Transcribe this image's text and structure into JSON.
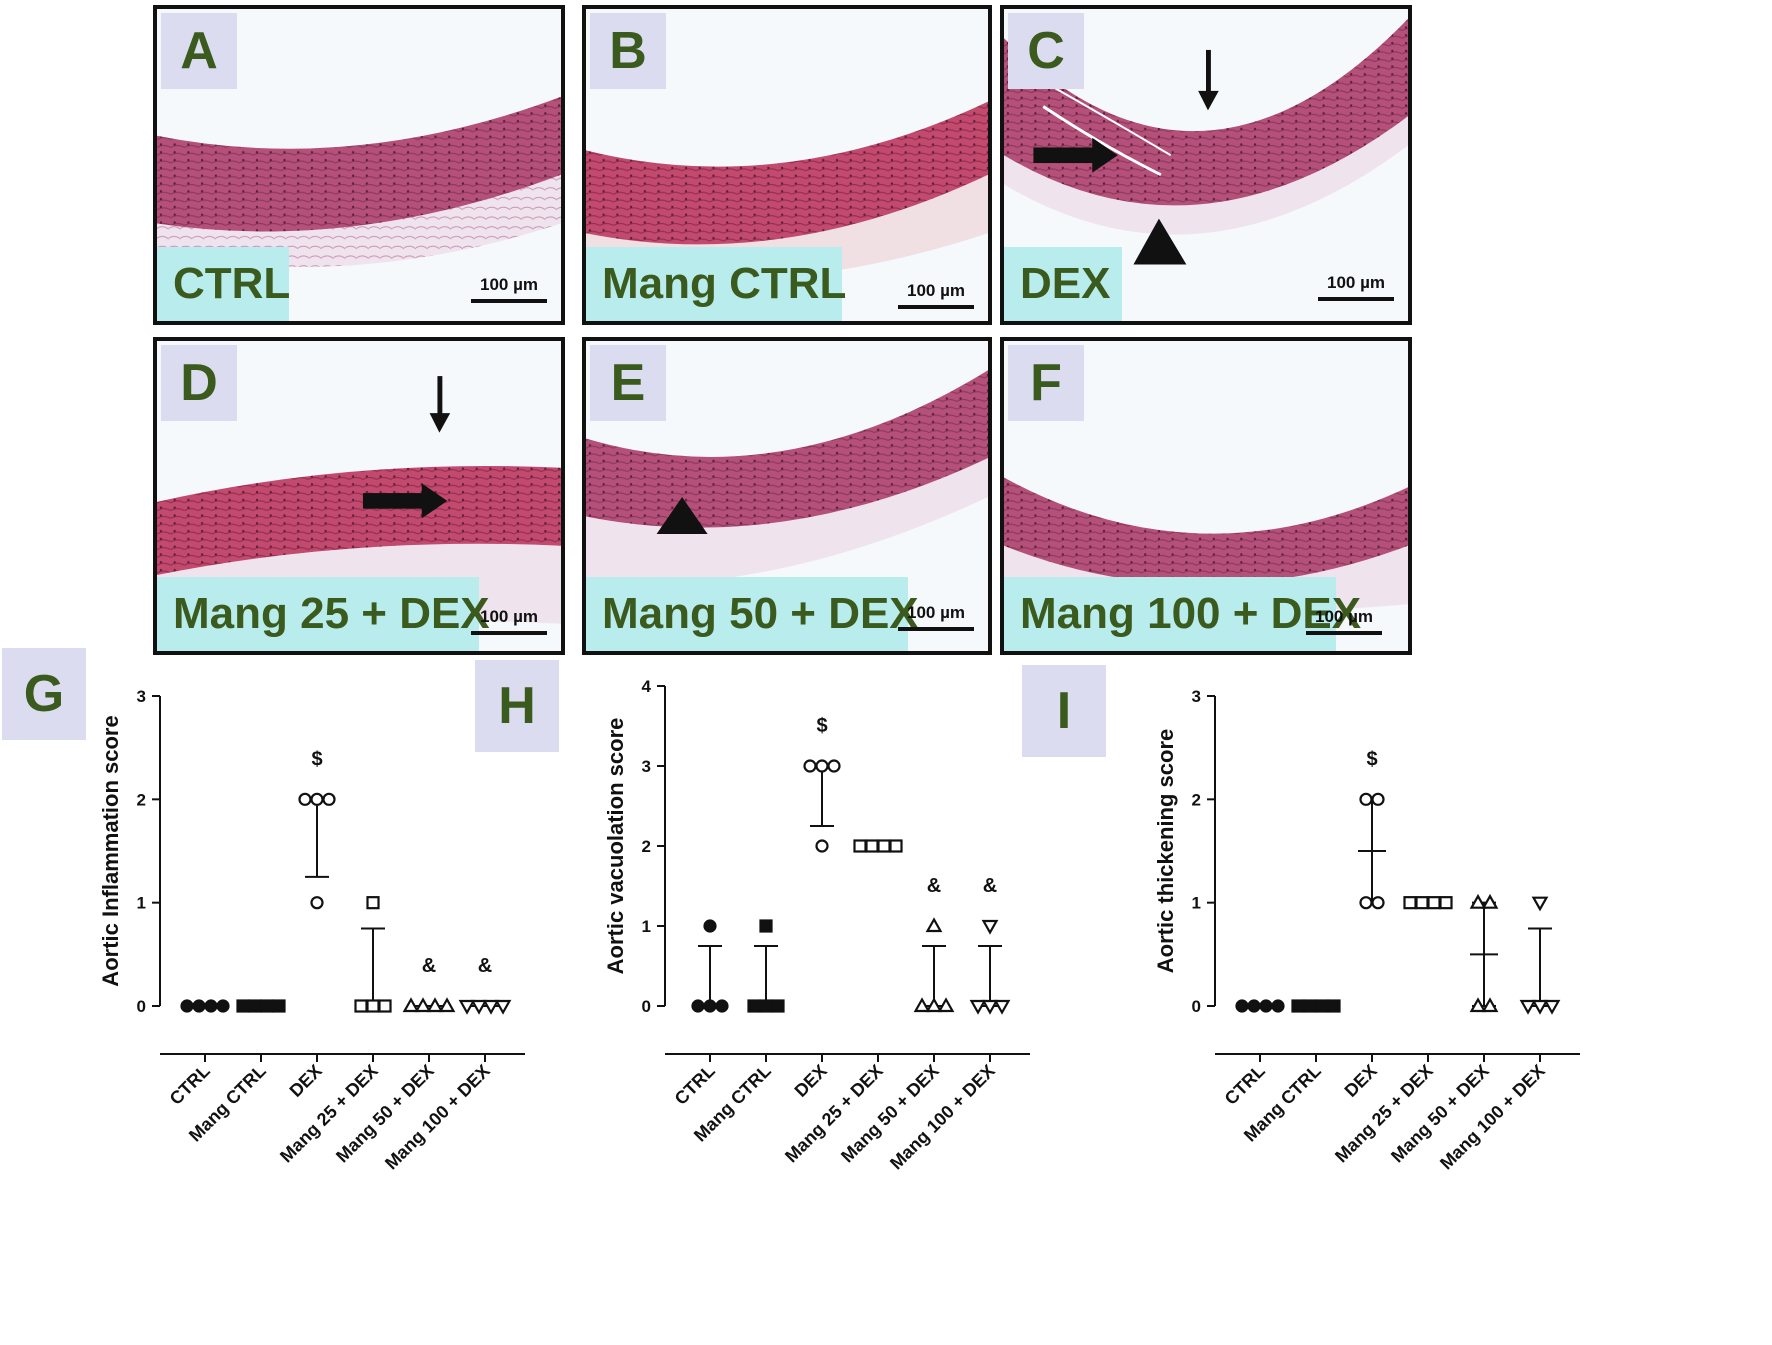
{
  "panels": [
    {
      "letter": "A",
      "condition": "CTRL",
      "scale": "100 µm"
    },
    {
      "letter": "B",
      "condition": "Mang CTRL",
      "scale": "100 µm"
    },
    {
      "letter": "C",
      "condition": "DEX",
      "scale": "100 µm"
    },
    {
      "letter": "D",
      "condition": "Mang 25 + DEX",
      "scale": "100 µm"
    },
    {
      "letter": "E",
      "condition": "Mang 50 + DEX",
      "scale": "100 µm"
    },
    {
      "letter": "F",
      "condition": "Mang 100 + DEX",
      "scale": "100 µm"
    }
  ],
  "chart_labels": [
    "G",
    "H",
    "I"
  ],
  "colors": {
    "tissue": "#b4507a",
    "tissue_dark": "#8e3a5c",
    "label_text": "#3b5a1e",
    "label_bg": "#dcdcf0",
    "condition_bg": "#b9ecec"
  },
  "chart_data": [
    {
      "type": "scatter",
      "title": "",
      "ylabel": "Aortic Inflammation score",
      "categories": [
        "CTRL",
        "Mang CTRL",
        "DEX",
        "Mang 25 + DEX",
        "Mang 50 + DEX",
        "Mang 100 + DEX"
      ],
      "markers": [
        "circle-filled",
        "square-filled",
        "circle",
        "square",
        "triangle",
        "triangle-down"
      ],
      "points": [
        [
          0,
          0,
          0,
          0
        ],
        [
          0,
          0,
          0,
          0
        ],
        [
          1,
          2,
          2,
          2
        ],
        [
          0,
          0,
          0,
          1
        ],
        [
          0,
          0,
          0,
          0
        ],
        [
          0,
          0,
          0,
          0
        ]
      ],
      "median": [
        0,
        0,
        2,
        0,
        0,
        0
      ],
      "err_low": [
        0,
        0,
        1.25,
        0,
        0,
        0
      ],
      "err_high": [
        0,
        0,
        2,
        0.75,
        0,
        0
      ],
      "annotations": [
        "",
        "",
        "$",
        "",
        "&",
        "&"
      ],
      "ylim": [
        0,
        3
      ],
      "yticks": [
        0,
        1,
        2,
        3
      ]
    },
    {
      "type": "scatter",
      "title": "",
      "ylabel": "Aortic vacuolation score",
      "categories": [
        "CTRL",
        "Mang CTRL",
        "DEX",
        "Mang 25 + DEX",
        "Mang 50 + DEX",
        "Mang 100 + DEX"
      ],
      "markers": [
        "circle-filled",
        "square-filled",
        "circle",
        "square",
        "triangle",
        "triangle-down"
      ],
      "points": [
        [
          0,
          0,
          0,
          1
        ],
        [
          0,
          0,
          0,
          1
        ],
        [
          2,
          3,
          3,
          3
        ],
        [
          2,
          2,
          2,
          2
        ],
        [
          0,
          0,
          0,
          1
        ],
        [
          0,
          0,
          0,
          1
        ]
      ],
      "median": [
        0,
        0,
        3,
        2,
        0,
        0
      ],
      "err_low": [
        0,
        0,
        2.25,
        2,
        0,
        0
      ],
      "err_high": [
        0.75,
        0.75,
        3,
        2,
        0.75,
        0.75
      ],
      "annotations": [
        "",
        "",
        "$",
        "",
        "&",
        "&"
      ],
      "ylim": [
        0,
        4
      ],
      "yticks": [
        0,
        1,
        2,
        3,
        4
      ]
    },
    {
      "type": "scatter",
      "title": "",
      "ylabel": "Aortic thickening score",
      "categories": [
        "CTRL",
        "Mang CTRL",
        "DEX",
        "Mang 25 + DEX",
        "Mang 50 + DEX",
        "Mang 100 + DEX"
      ],
      "markers": [
        "circle-filled",
        "square-filled",
        "circle",
        "square",
        "triangle",
        "triangle-down"
      ],
      "points": [
        [
          0,
          0,
          0,
          0
        ],
        [
          0,
          0,
          0,
          0
        ],
        [
          1,
          1,
          2,
          2
        ],
        [
          1,
          1,
          1,
          1
        ],
        [
          0,
          0,
          1,
          1
        ],
        [
          0,
          0,
          0,
          1
        ]
      ],
      "median": [
        0,
        0,
        1.5,
        1,
        0.5,
        0
      ],
      "err_low": [
        0,
        0,
        1,
        1,
        0,
        0
      ],
      "err_high": [
        0,
        0,
        2,
        1,
        1,
        0.75
      ],
      "annotations": [
        "",
        "",
        "$",
        "",
        "",
        ""
      ],
      "ylim": [
        0,
        3
      ],
      "yticks": [
        0,
        1,
        2,
        3
      ]
    }
  ]
}
